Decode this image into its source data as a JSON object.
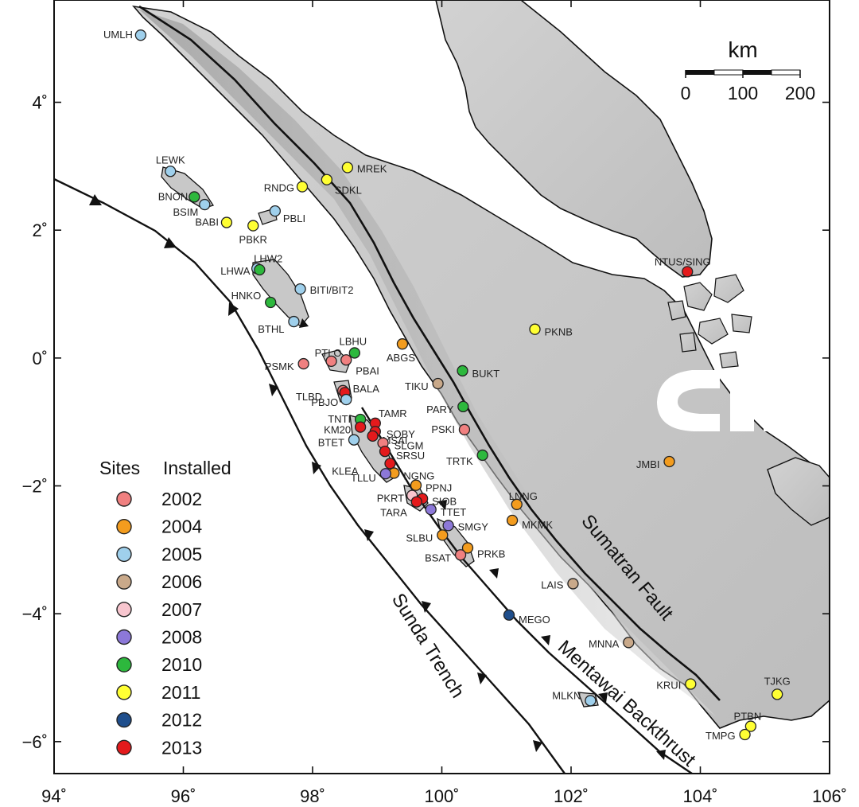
{
  "axes": {
    "x_ticks": [
      {
        "value": 94,
        "label": "94˚"
      },
      {
        "value": 96,
        "label": "96˚"
      },
      {
        "value": 98,
        "label": "98˚"
      },
      {
        "value": 100,
        "label": "100˚"
      },
      {
        "value": 102,
        "label": "102˚"
      },
      {
        "value": 104,
        "label": "104˚"
      },
      {
        "value": 106,
        "label": "106˚"
      }
    ],
    "y_ticks": [
      {
        "value": 4,
        "label": "4˚"
      },
      {
        "value": 2,
        "label": "2˚"
      },
      {
        "value": 0,
        "label": "0˚"
      },
      {
        "value": -2,
        "label": "−2˚"
      },
      {
        "value": -4,
        "label": "−4˚"
      },
      {
        "value": -6,
        "label": "−6˚"
      }
    ],
    "lon_range": [
      94,
      106
    ],
    "lat_range": [
      -6.5,
      5.6
    ]
  },
  "features": {
    "sunda_trench": "Sunda Trench",
    "mentawai_backthrust": "Mentawai Backthrust",
    "sumatran_fault": "Sumatran Fault"
  },
  "scale_bar": {
    "title": "km",
    "labels": [
      "0",
      "100",
      "200"
    ]
  },
  "legend": {
    "title_sites": "Sites",
    "title_installed": "Installed",
    "entries": [
      {
        "year": "2002",
        "color": "#f08080"
      },
      {
        "year": "2004",
        "color": "#f39c1e"
      },
      {
        "year": "2005",
        "color": "#9fd0ec"
      },
      {
        "year": "2006",
        "color": "#c9a98a"
      },
      {
        "year": "2007",
        "color": "#f8c6cf"
      },
      {
        "year": "2008",
        "color": "#8c78d8"
      },
      {
        "year": "2010",
        "color": "#2db83d"
      },
      {
        "year": "2011",
        "color": "#ffff33"
      },
      {
        "year": "2012",
        "color": "#1f4e8c"
      },
      {
        "year": "2013",
        "color": "#e41a1c"
      }
    ]
  },
  "sites": [
    {
      "name": "UMLH",
      "lon": 95.34,
      "lat": 5.05,
      "year": "2005"
    },
    {
      "name": "LEWK",
      "lon": 95.8,
      "lat": 2.92,
      "year": "2005"
    },
    {
      "name": "BNON",
      "lon": 96.17,
      "lat": 2.52,
      "year": "2010"
    },
    {
      "name": "BSIM",
      "lon": 96.33,
      "lat": 2.4,
      "year": "2005"
    },
    {
      "name": "BABI",
      "lon": 96.67,
      "lat": 2.12,
      "year": "2011"
    },
    {
      "name": "PBKR",
      "lon": 97.08,
      "lat": 2.07,
      "year": "2011"
    },
    {
      "name": "PBLI",
      "lon": 97.42,
      "lat": 2.3,
      "year": "2005"
    },
    {
      "name": "RNDG",
      "lon": 97.84,
      "lat": 2.68,
      "year": "2011"
    },
    {
      "name": "SDKL",
      "lon": 98.22,
      "lat": 2.79,
      "year": "2011"
    },
    {
      "name": "MREK",
      "lon": 98.54,
      "lat": 2.98,
      "year": "2011"
    },
    {
      "name": "LHW2",
      "lon": 97.14,
      "lat": 1.4,
      "year": "2005"
    },
    {
      "name": "LHWA",
      "lon": 97.18,
      "lat": 1.38,
      "year": "2010"
    },
    {
      "name": "BITI/BIT2",
      "lon": 97.81,
      "lat": 1.08,
      "year": "2005"
    },
    {
      "name": "HNKO",
      "lon": 97.35,
      "lat": 0.87,
      "year": "2010"
    },
    {
      "name": "BTHL",
      "lon": 97.71,
      "lat": 0.57,
      "year": "2005"
    },
    {
      "name": "NTUS/SING",
      "lon": 103.8,
      "lat": 1.35,
      "year": "2013"
    },
    {
      "name": "PKNB",
      "lon": 101.44,
      "lat": 0.45,
      "year": "2011"
    },
    {
      "name": "LBHU",
      "lon": 98.65,
      "lat": 0.08,
      "year": "2010"
    },
    {
      "name": "PTLO",
      "lon": 98.29,
      "lat": -0.05,
      "year": "2002"
    },
    {
      "name": "PBAI",
      "lon": 98.52,
      "lat": -0.03,
      "year": "2002"
    },
    {
      "name": "ABGS",
      "lon": 99.39,
      "lat": 0.22,
      "year": "2004"
    },
    {
      "name": "PSMK",
      "lon": 97.86,
      "lat": -0.09,
      "year": "2002"
    },
    {
      "name": "BUKT",
      "lon": 100.32,
      "lat": -0.2,
      "year": "2010"
    },
    {
      "name": "TIKU",
      "lon": 99.94,
      "lat": -0.4,
      "year": "2006"
    },
    {
      "name": "TLBD",
      "lon": 98.47,
      "lat": -0.51,
      "year": "2002"
    },
    {
      "name": "BALA",
      "lon": 98.5,
      "lat": -0.54,
      "year": "2013"
    },
    {
      "name": "PBJO",
      "lon": 98.52,
      "lat": -0.65,
      "year": "2005"
    },
    {
      "name": "PARY",
      "lon": 100.33,
      "lat": -0.76,
      "year": "2010"
    },
    {
      "name": "TNTI",
      "lon": 98.74,
      "lat": -0.96,
      "year": "2010"
    },
    {
      "name": "TAMR",
      "lon": 98.97,
      "lat": -1.02,
      "year": "2013"
    },
    {
      "name": "KM20",
      "lon": 98.74,
      "lat": -1.08,
      "year": "2013"
    },
    {
      "name": "SOBY",
      "lon": 98.97,
      "lat": -1.15,
      "year": "2013"
    },
    {
      "name": "PSKI",
      "lon": 100.35,
      "lat": -1.12,
      "year": "2002"
    },
    {
      "name": "MSAI",
      "lon": 98.93,
      "lat": -1.22,
      "year": "2013"
    },
    {
      "name": "BTET",
      "lon": 98.64,
      "lat": -1.28,
      "year": "2005"
    },
    {
      "name": "SLGM",
      "lon": 99.09,
      "lat": -1.33,
      "year": "2002"
    },
    {
      "name": "SRSU",
      "lon": 99.12,
      "lat": -1.46,
      "year": "2013"
    },
    {
      "name": "TRTK",
      "lon": 100.63,
      "lat": -1.52,
      "year": "2010"
    },
    {
      "name": "JMBI",
      "lon": 103.52,
      "lat": -1.62,
      "year": "2004"
    },
    {
      "name": "KLEA",
      "lon": 99.2,
      "lat": -1.65,
      "year": "2013"
    },
    {
      "name": "NGNG",
      "lon": 99.26,
      "lat": -1.8,
      "year": "2004"
    },
    {
      "name": "TLLU",
      "lon": 99.13,
      "lat": -1.81,
      "year": "2008"
    },
    {
      "name": "PPNJ",
      "lon": 99.6,
      "lat": -1.99,
      "year": "2004"
    },
    {
      "name": "PKRT",
      "lon": 99.54,
      "lat": -2.15,
      "year": "2007"
    },
    {
      "name": "SIOB",
      "lon": 99.7,
      "lat": -2.2,
      "year": "2013"
    },
    {
      "name": "TARA",
      "lon": 99.61,
      "lat": -2.25,
      "year": "2013"
    },
    {
      "name": "LNNG",
      "lon": 101.16,
      "lat": -2.29,
      "year": "2004"
    },
    {
      "name": "TTET",
      "lon": 99.83,
      "lat": -2.37,
      "year": "2008"
    },
    {
      "name": "MKMK",
      "lon": 101.09,
      "lat": -2.54,
      "year": "2004"
    },
    {
      "name": "SMGY",
      "lon": 100.1,
      "lat": -2.62,
      "year": "2008"
    },
    {
      "name": "SLBU",
      "lon": 100.01,
      "lat": -2.77,
      "year": "2004"
    },
    {
      "name": "PRKB",
      "lon": 100.4,
      "lat": -2.97,
      "year": "2004"
    },
    {
      "name": "BSAT",
      "lon": 100.29,
      "lat": -3.08,
      "year": "2002"
    },
    {
      "name": "LAIS",
      "lon": 102.03,
      "lat": -3.53,
      "year": "2006"
    },
    {
      "name": "MEGO",
      "lon": 101.04,
      "lat": -4.02,
      "year": "2012"
    },
    {
      "name": "MNNA",
      "lon": 102.89,
      "lat": -4.45,
      "year": "2006"
    },
    {
      "name": "KRUI",
      "lon": 103.85,
      "lat": -5.1,
      "year": "2011"
    },
    {
      "name": "TJKG",
      "lon": 105.19,
      "lat": -5.26,
      "year": "2011"
    },
    {
      "name": "MLKN",
      "lon": 102.3,
      "lat": -5.36,
      "year": "2005"
    },
    {
      "name": "PTBN",
      "lon": 104.78,
      "lat": -5.76,
      "year": "2011"
    },
    {
      "name": "TMPG",
      "lon": 104.69,
      "lat": -5.89,
      "year": "2011"
    }
  ]
}
